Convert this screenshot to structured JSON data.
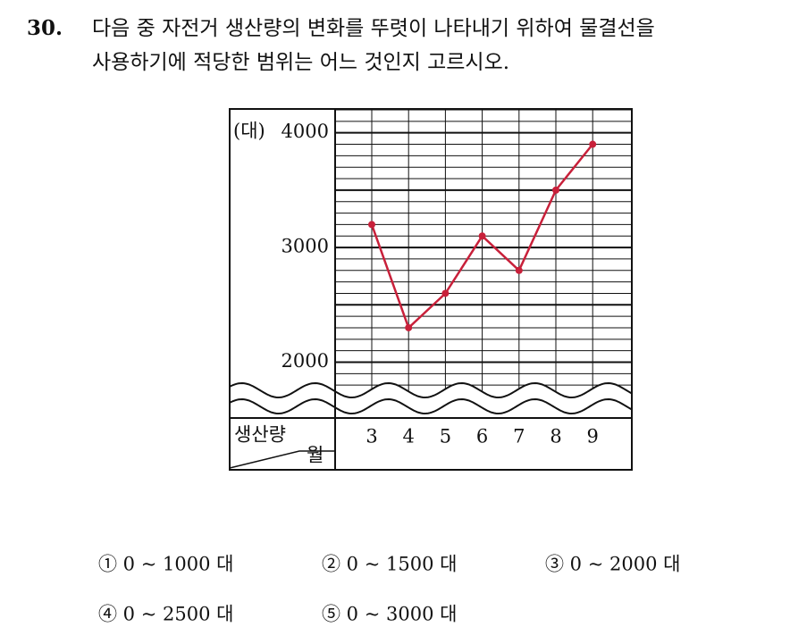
{
  "question": {
    "number": "30.",
    "lines": [
      "다음 중 자전거 생산량의 변화를 뚜렷이 나타내기 위하여 물결선을",
      "사용하기에 적당한 범위는 어느 것인지 고르시오."
    ]
  },
  "chart_data": {
    "type": "line",
    "y_unit": "(대)",
    "corner_row_label": "생산량",
    "corner_col_label": "월",
    "categories": [
      "3",
      "4",
      "5",
      "6",
      "7",
      "8",
      "9"
    ],
    "values": [
      3200,
      2300,
      2600,
      3100,
      2800,
      3500,
      3900
    ],
    "color": "#c8203a",
    "ylim": [
      1750,
      4200
    ],
    "yticks": [
      2000,
      3000,
      4000
    ],
    "grid_lines": [
      1800,
      1900,
      2000,
      2100,
      2200,
      2300,
      2400,
      2500,
      2600,
      2700,
      2800,
      2900,
      3000,
      3100,
      3200,
      3300,
      3400,
      3500,
      3600,
      3700,
      3800,
      3900,
      4000,
      4100,
      4200
    ],
    "axis_break": true
  },
  "choices": [
    "① 0 ~ 1000 대",
    "② 0 ~ 1500 대",
    "③ 0 ~ 2000 대",
    "④ 0 ~ 2500 대",
    "⑤ 0 ~ 3000 대"
  ]
}
